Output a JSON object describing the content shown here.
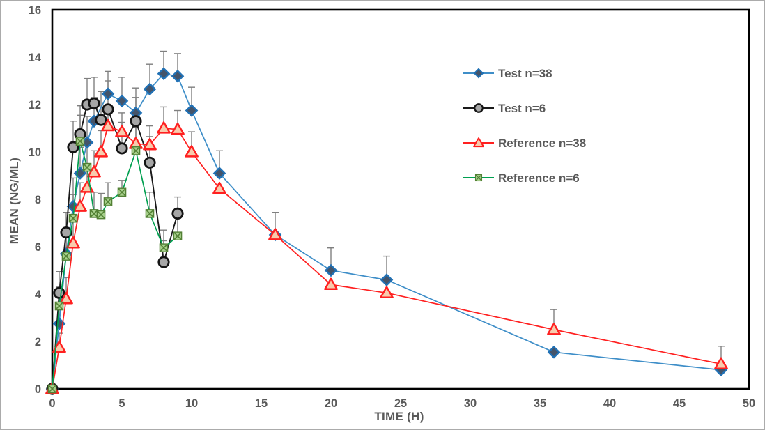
{
  "styles": {
    "background": "#ffffff",
    "frame_border_color": "#ababab",
    "plot_border_color": "#000000",
    "text_color": "#595959",
    "errorbar_color": "#7f7f7f"
  },
  "chart_data": {
    "type": "line",
    "title": "",
    "xlabel": "TIME (H)",
    "ylabel": "MEAN (NG/ML)",
    "xlim": [
      0,
      50
    ],
    "ylim": [
      0,
      16
    ],
    "x_ticks": [
      0,
      5,
      10,
      15,
      20,
      25,
      30,
      35,
      40,
      45,
      50
    ],
    "y_ticks": [
      0,
      2,
      4,
      6,
      8,
      10,
      12,
      14,
      16
    ],
    "grid": false,
    "legend_position": "inside-upper-right",
    "error_bars": "plus-direction-only",
    "series": [
      {
        "name": "Test n=38",
        "marker": "diamond",
        "line_color": "#3e8ec8",
        "marker_fill": "#44546a",
        "marker_stroke": "#2171b5",
        "x": [
          0,
          0.5,
          1,
          1.5,
          2,
          2.5,
          3,
          4,
          5,
          6,
          7,
          8,
          9,
          10,
          12,
          16,
          20,
          24,
          36,
          48
        ],
        "y": [
          0,
          2.75,
          5.7,
          7.7,
          9.1,
          10.4,
          11.3,
          12.45,
          12.15,
          11.65,
          12.65,
          13.3,
          13.2,
          11.75,
          9.1,
          6.5,
          5.0,
          4.6,
          1.55,
          0.8
        ],
        "sd": [
          0,
          0.7,
          1.0,
          1.2,
          1.1,
          1.1,
          1.0,
          0.95,
          1.0,
          1.05,
          1.05,
          0.95,
          0.95,
          0.98,
          0.95,
          0.95,
          0.95,
          1.0,
          0,
          0
        ]
      },
      {
        "name": "Test n=6",
        "marker": "circle",
        "line_color": "#1a1a1a",
        "marker_fill": "#a6a6a6",
        "marker_stroke": "#141414",
        "x": [
          0,
          0.5,
          1,
          1.5,
          2,
          2.5,
          3,
          3.5,
          4,
          5,
          6,
          7,
          8,
          9
        ],
        "y": [
          0,
          4.05,
          6.6,
          10.2,
          10.75,
          12.0,
          12.05,
          11.35,
          11.8,
          10.15,
          11.3,
          9.55,
          5.35,
          7.4
        ],
        "sd": [
          0,
          0.9,
          0.85,
          1.1,
          1.2,
          1.1,
          1.1,
          1.2,
          1.2,
          1.1,
          1.0,
          1.1,
          0.9,
          0.7
        ]
      },
      {
        "name": "Reference n=38",
        "marker": "triangle",
        "line_color": "#ff2020",
        "marker_fill": "#f8cbad",
        "marker_stroke": "#ff2020",
        "x": [
          0,
          0.5,
          1,
          1.5,
          2,
          2.5,
          3,
          3.5,
          4,
          5,
          6,
          7,
          8,
          9,
          10,
          12,
          16,
          20,
          24,
          36,
          48
        ],
        "y": [
          0,
          1.75,
          3.8,
          6.15,
          7.7,
          8.5,
          9.15,
          10.0,
          11.1,
          10.85,
          10.35,
          10.3,
          11.0,
          10.95,
          10.0,
          8.45,
          6.5,
          4.4,
          4.05,
          2.5,
          1.05
        ],
        "sd": [
          0,
          0.6,
          0.9,
          1.0,
          1.0,
          1.0,
          0.9,
          0.9,
          0.7,
          0.8,
          0.8,
          0.8,
          0.9,
          0.8,
          0.85,
          0,
          0,
          0,
          0,
          0.85,
          0.75
        ]
      },
      {
        "name": "Reference n=6",
        "marker": "x-square",
        "line_color": "#00a050",
        "marker_fill": "#a9d18e",
        "marker_stroke": "#538135",
        "x": [
          0,
          0.5,
          1,
          1.5,
          2,
          2.5,
          3,
          3.5,
          4,
          5,
          6,
          7,
          8,
          9
        ],
        "y": [
          0,
          3.5,
          5.6,
          7.2,
          10.45,
          9.35,
          7.4,
          7.35,
          7.9,
          8.3,
          10.05,
          7.4,
          5.95,
          6.45
        ],
        "sd": [
          0,
          0.8,
          0.9,
          1.0,
          1.1,
          1.0,
          0.9,
          0.9,
          0.8,
          0.5,
          1.0,
          0.9,
          0.75,
          0.75
        ]
      }
    ]
  }
}
